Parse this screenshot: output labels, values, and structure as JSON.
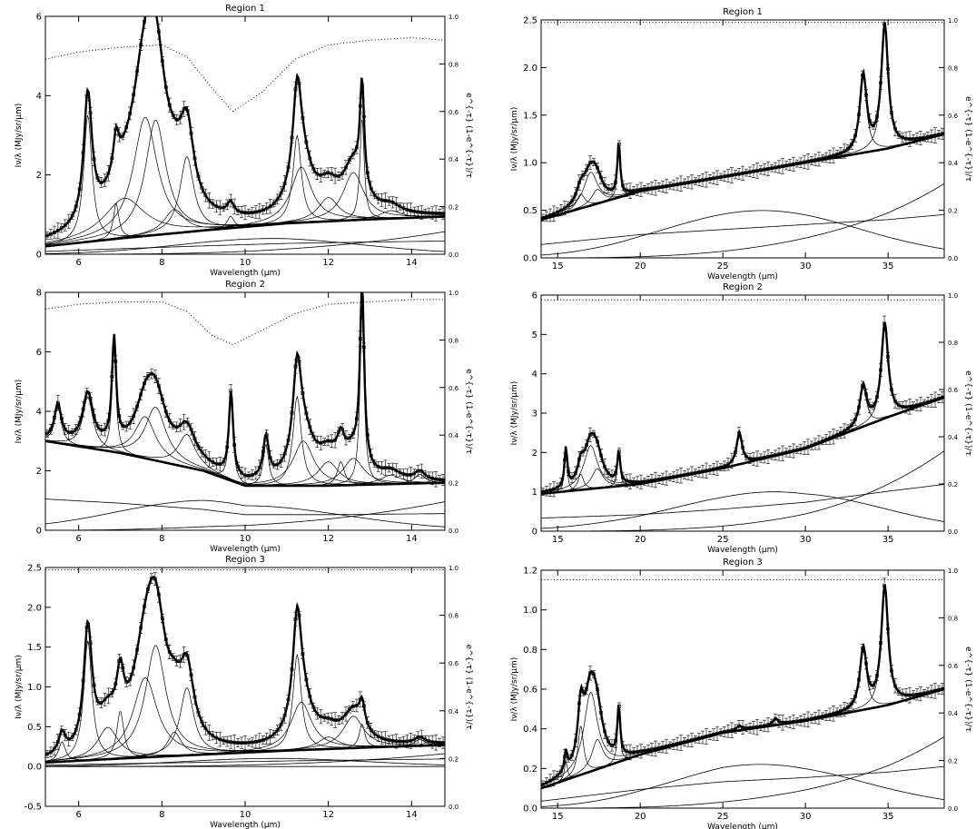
{
  "figure": {
    "ylabel_left": "Iν/λ (MJy/sr/μm)",
    "ylabel_right": "e^{-τ} (1-e^{-τ})/τ",
    "xlabel": "Wavelength (μm)"
  },
  "chart_data": [
    {
      "type": "line",
      "title": "Region 1",
      "xlim": [
        5.2,
        14.8
      ],
      "ylim": [
        0,
        6
      ],
      "y2lim": [
        0,
        1.0
      ],
      "xticks": [
        6,
        8,
        10,
        12,
        14
      ],
      "xtick_labels": [
        "6",
        "8",
        "10",
        "12",
        "14"
      ],
      "yticks": [
        0,
        2,
        4,
        6
      ],
      "ytick_labels": [
        "0",
        "2",
        "4",
        "6"
      ],
      "y2ticks": [
        0,
        0.2,
        0.4,
        0.6,
        0.8,
        1.0
      ],
      "y2tick_labels": [
        "0.0",
        "0.2",
        "0.4",
        "0.6",
        "0.8",
        "1.0"
      ],
      "continuum": {
        "x": [
          5.2,
          7,
          9,
          11,
          13,
          14.8
        ],
        "y": [
          0.2,
          0.4,
          0.6,
          0.78,
          0.88,
          0.95
        ]
      },
      "lines": [
        {
          "c": 6.22,
          "w": 0.12,
          "a": 3.2
        },
        {
          "c": 6.9,
          "w": 0.08,
          "a": 0.9
        },
        {
          "c": 7.1,
          "w": 0.6,
          "a": 1.0
        },
        {
          "c": 7.6,
          "w": 0.35,
          "a": 3.0
        },
        {
          "c": 7.85,
          "w": 0.3,
          "a": 2.9
        },
        {
          "c": 8.3,
          "w": 0.3,
          "a": 0.6
        },
        {
          "c": 8.6,
          "w": 0.2,
          "a": 1.9
        },
        {
          "c": 9.65,
          "w": 0.1,
          "a": 0.3
        },
        {
          "c": 11.25,
          "w": 0.12,
          "a": 2.2
        },
        {
          "c": 11.35,
          "w": 0.3,
          "a": 1.4
        },
        {
          "c": 12.0,
          "w": 0.3,
          "a": 0.6
        },
        {
          "c": 12.6,
          "w": 0.3,
          "a": 1.2
        },
        {
          "c": 12.81,
          "w": 0.06,
          "a": 2.6
        },
        {
          "c": 13.5,
          "w": 0.3,
          "a": 0.2
        }
      ],
      "extinction": {
        "x": [
          5.2,
          6,
          7,
          8,
          8.6,
          9.2,
          9.7,
          10.4,
          11.2,
          12,
          13,
          14,
          14.8
        ],
        "y": [
          0.82,
          0.85,
          0.87,
          0.88,
          0.83,
          0.7,
          0.6,
          0.68,
          0.82,
          0.88,
          0.9,
          0.91,
          0.9
        ]
      },
      "scale": "linear"
    },
    {
      "type": "line",
      "title": "Region 1",
      "xlim": [
        14,
        38.4
      ],
      "ylim": [
        0,
        2.5
      ],
      "y2lim": [
        0,
        1.0
      ],
      "xticks": [
        15,
        20,
        25,
        30,
        35
      ],
      "xtick_labels": [
        "15",
        "20",
        "25",
        "30",
        "35"
      ],
      "yticks": [
        0,
        0.5,
        1.0,
        1.5,
        2.0,
        2.5
      ],
      "ytick_labels": [
        "0.0",
        "0.5",
        "1.0",
        "1.5",
        "2.0",
        "2.5"
      ],
      "y2ticks": [
        0,
        0.2,
        0.4,
        0.6,
        0.8,
        1.0
      ],
      "y2tick_labels": [
        "0.0",
        "0.2",
        "0.4",
        "0.6",
        "0.8",
        "1.0"
      ],
      "continuum": {
        "x": [
          14,
          20,
          25,
          30,
          35,
          38.4
        ],
        "y": [
          0.4,
          0.7,
          0.85,
          1.0,
          1.15,
          1.3
        ]
      },
      "lines": [
        {
          "c": 16.4,
          "w": 0.3,
          "a": 0.15
        },
        {
          "c": 17.0,
          "w": 0.5,
          "a": 0.35
        },
        {
          "c": 17.4,
          "w": 0.4,
          "a": 0.15
        },
        {
          "c": 18.7,
          "w": 0.1,
          "a": 0.55
        },
        {
          "c": 33.5,
          "w": 0.25,
          "a": 0.8
        },
        {
          "c": 34.8,
          "w": 0.25,
          "a": 1.3
        }
      ],
      "extinction": {
        "x": [
          14,
          38.4
        ],
        "y": [
          0.99,
          0.99
        ]
      },
      "scale": "linear"
    },
    {
      "type": "line",
      "title": "Region 2",
      "xlim": [
        5.2,
        14.8
      ],
      "ylim": [
        0,
        8
      ],
      "y2lim": [
        0,
        1.0
      ],
      "xticks": [
        6,
        8,
        10,
        12,
        14
      ],
      "xtick_labels": [
        "6",
        "8",
        "10",
        "12",
        "14"
      ],
      "yticks": [
        0,
        2,
        4,
        6,
        8
      ],
      "ytick_labels": [
        "0",
        "2",
        "4",
        "6",
        "8"
      ],
      "y2ticks": [
        0,
        0.2,
        0.4,
        0.6,
        0.8,
        1.0
      ],
      "y2tick_labels": [
        "0.0",
        "0.2",
        "0.4",
        "0.6",
        "0.8",
        "1.0"
      ],
      "continuum": {
        "x": [
          5.2,
          7,
          9,
          10,
          12,
          14.8
        ],
        "y": [
          3.0,
          2.6,
          2.0,
          1.5,
          1.5,
          1.6
        ]
      },
      "lines": [
        {
          "c": 5.5,
          "w": 0.1,
          "a": 1.2
        },
        {
          "c": 6.22,
          "w": 0.15,
          "a": 1.7
        },
        {
          "c": 6.85,
          "w": 0.06,
          "a": 3.5
        },
        {
          "c": 7.6,
          "w": 0.3,
          "a": 1.4
        },
        {
          "c": 7.85,
          "w": 0.3,
          "a": 1.8
        },
        {
          "c": 8.6,
          "w": 0.25,
          "a": 1.1
        },
        {
          "c": 9.66,
          "w": 0.06,
          "a": 2.8
        },
        {
          "c": 10.5,
          "w": 0.08,
          "a": 1.4
        },
        {
          "c": 11.25,
          "w": 0.12,
          "a": 3.0
        },
        {
          "c": 11.4,
          "w": 0.3,
          "a": 1.5
        },
        {
          "c": 12.0,
          "w": 0.3,
          "a": 0.8
        },
        {
          "c": 12.3,
          "w": 0.1,
          "a": 0.8
        },
        {
          "c": 12.6,
          "w": 0.3,
          "a": 0.9
        },
        {
          "c": 12.81,
          "w": 0.06,
          "a": 5.9
        },
        {
          "c": 13.5,
          "w": 0.3,
          "a": 0.3
        },
        {
          "c": 14.2,
          "w": 0.15,
          "a": 0.3
        }
      ],
      "extinction": {
        "x": [
          5.2,
          6,
          7,
          8,
          8.6,
          9.2,
          9.7,
          10.4,
          11.2,
          12,
          13,
          14,
          14.8
        ],
        "y": [
          0.93,
          0.95,
          0.96,
          0.96,
          0.92,
          0.82,
          0.78,
          0.84,
          0.91,
          0.95,
          0.96,
          0.97,
          0.97
        ]
      },
      "scale": "linear"
    },
    {
      "type": "line",
      "title": "Region 2",
      "xlim": [
        14,
        38.4
      ],
      "ylim": [
        0,
        6
      ],
      "y2lim": [
        0,
        1.0
      ],
      "xticks": [
        15,
        20,
        25,
        30,
        35
      ],
      "xtick_labels": [
        "15",
        "20",
        "25",
        "30",
        "35"
      ],
      "yticks": [
        0,
        1,
        2,
        3,
        4,
        5,
        6
      ],
      "ytick_labels": [
        "0",
        "1",
        "2",
        "3",
        "4",
        "5",
        "6"
      ],
      "y2ticks": [
        0,
        0.2,
        0.4,
        0.6,
        0.8,
        1.0
      ],
      "y2tick_labels": [
        "0.0",
        "0.2",
        "0.4",
        "0.6",
        "0.8",
        "1.0"
      ],
      "continuum": {
        "x": [
          14,
          20,
          25,
          30,
          35,
          38.4
        ],
        "y": [
          0.95,
          1.2,
          1.6,
          2.1,
          2.9,
          3.4
        ]
      },
      "lines": [
        {
          "c": 15.5,
          "w": 0.1,
          "a": 1.0
        },
        {
          "c": 16.4,
          "w": 0.2,
          "a": 0.4
        },
        {
          "c": 17.0,
          "w": 0.5,
          "a": 1.1
        },
        {
          "c": 17.4,
          "w": 0.4,
          "a": 0.5
        },
        {
          "c": 18.7,
          "w": 0.1,
          "a": 0.8
        },
        {
          "c": 26.0,
          "w": 0.2,
          "a": 0.8
        },
        {
          "c": 33.5,
          "w": 0.25,
          "a": 1.0
        },
        {
          "c": 34.8,
          "w": 0.25,
          "a": 2.4
        }
      ],
      "extinction": {
        "x": [
          14,
          38.4
        ],
        "y": [
          0.98,
          0.98
        ]
      },
      "scale": "linear"
    },
    {
      "type": "line",
      "title": "Region 3",
      "xlim": [
        5.2,
        14.8
      ],
      "ylim": [
        -0.5,
        2.5
      ],
      "y2lim": [
        0,
        1.0
      ],
      "xticks": [
        6,
        8,
        10,
        12,
        14
      ],
      "xtick_labels": [
        "6",
        "8",
        "10",
        "12",
        "14"
      ],
      "yticks": [
        -0.5,
        0,
        0.5,
        1.0,
        1.5,
        2.0,
        2.5
      ],
      "ytick_labels": [
        "-0.5",
        "0.0",
        "0.5",
        "1.0",
        "1.5",
        "2.0",
        "2.5"
      ],
      "y2ticks": [
        0,
        0.2,
        0.4,
        0.6,
        0.8,
        1.0
      ],
      "y2tick_labels": [
        "0.0",
        "0.2",
        "0.4",
        "0.6",
        "0.8",
        "1.0"
      ],
      "continuum": {
        "x": [
          5.2,
          7,
          9,
          11,
          13,
          14.8
        ],
        "y": [
          0.05,
          0.1,
          0.15,
          0.2,
          0.24,
          0.27
        ]
      },
      "lines": [
        {
          "c": 5.6,
          "w": 0.1,
          "a": 0.25
        },
        {
          "c": 6.22,
          "w": 0.12,
          "a": 1.5
        },
        {
          "c": 6.7,
          "w": 0.3,
          "a": 0.4
        },
        {
          "c": 7.0,
          "w": 0.1,
          "a": 0.6
        },
        {
          "c": 7.6,
          "w": 0.35,
          "a": 1.0
        },
        {
          "c": 7.85,
          "w": 0.3,
          "a": 1.4
        },
        {
          "c": 8.3,
          "w": 0.2,
          "a": 0.3
        },
        {
          "c": 8.6,
          "w": 0.2,
          "a": 0.85
        },
        {
          "c": 11.25,
          "w": 0.12,
          "a": 1.2
        },
        {
          "c": 11.35,
          "w": 0.3,
          "a": 0.6
        },
        {
          "c": 12.0,
          "w": 0.3,
          "a": 0.15
        },
        {
          "c": 12.6,
          "w": 0.3,
          "a": 0.4
        },
        {
          "c": 12.81,
          "w": 0.08,
          "a": 0.3
        },
        {
          "c": 14.2,
          "w": 0.15,
          "a": 0.08
        }
      ],
      "extinction": {
        "x": [
          5.2,
          14.8
        ],
        "y": [
          0.99,
          0.99
        ]
      },
      "scale": "linear"
    },
    {
      "type": "line",
      "title": "Region 3",
      "xlim": [
        14,
        38.4
      ],
      "ylim": [
        0,
        1.2
      ],
      "y2lim": [
        0,
        1.0
      ],
      "xticks": [
        15,
        20,
        25,
        30,
        35
      ],
      "xtick_labels": [
        "15",
        "20",
        "25",
        "30",
        "35"
      ],
      "yticks": [
        0,
        0.2,
        0.4,
        0.6,
        0.8,
        1.0,
        1.2
      ],
      "ytick_labels": [
        "0.0",
        "0.2",
        "0.4",
        "0.6",
        "0.8",
        "1.0",
        "1.2"
      ],
      "y2ticks": [
        0,
        0.2,
        0.4,
        0.6,
        0.8,
        1.0
      ],
      "y2tick_labels": [
        "0.0",
        "0.2",
        "0.4",
        "0.6",
        "0.8",
        "1.0"
      ],
      "continuum": {
        "x": [
          14,
          20,
          25,
          30,
          35,
          38.4
        ],
        "y": [
          0.1,
          0.27,
          0.38,
          0.44,
          0.52,
          0.6
        ]
      },
      "lines": [
        {
          "c": 15.5,
          "w": 0.1,
          "a": 0.1
        },
        {
          "c": 16.4,
          "w": 0.2,
          "a": 0.25
        },
        {
          "c": 17.0,
          "w": 0.5,
          "a": 0.4
        },
        {
          "c": 17.4,
          "w": 0.4,
          "a": 0.15
        },
        {
          "c": 18.7,
          "w": 0.1,
          "a": 0.25
        },
        {
          "c": 26.0,
          "w": 0.2,
          "a": 0.02
        },
        {
          "c": 28.2,
          "w": 0.2,
          "a": 0.03
        },
        {
          "c": 33.5,
          "w": 0.25,
          "a": 0.3
        },
        {
          "c": 34.8,
          "w": 0.25,
          "a": 0.6
        }
      ],
      "extinction": {
        "x": [
          14,
          38.4
        ],
        "y": [
          0.96,
          0.96
        ]
      },
      "scale": "linear"
    }
  ]
}
